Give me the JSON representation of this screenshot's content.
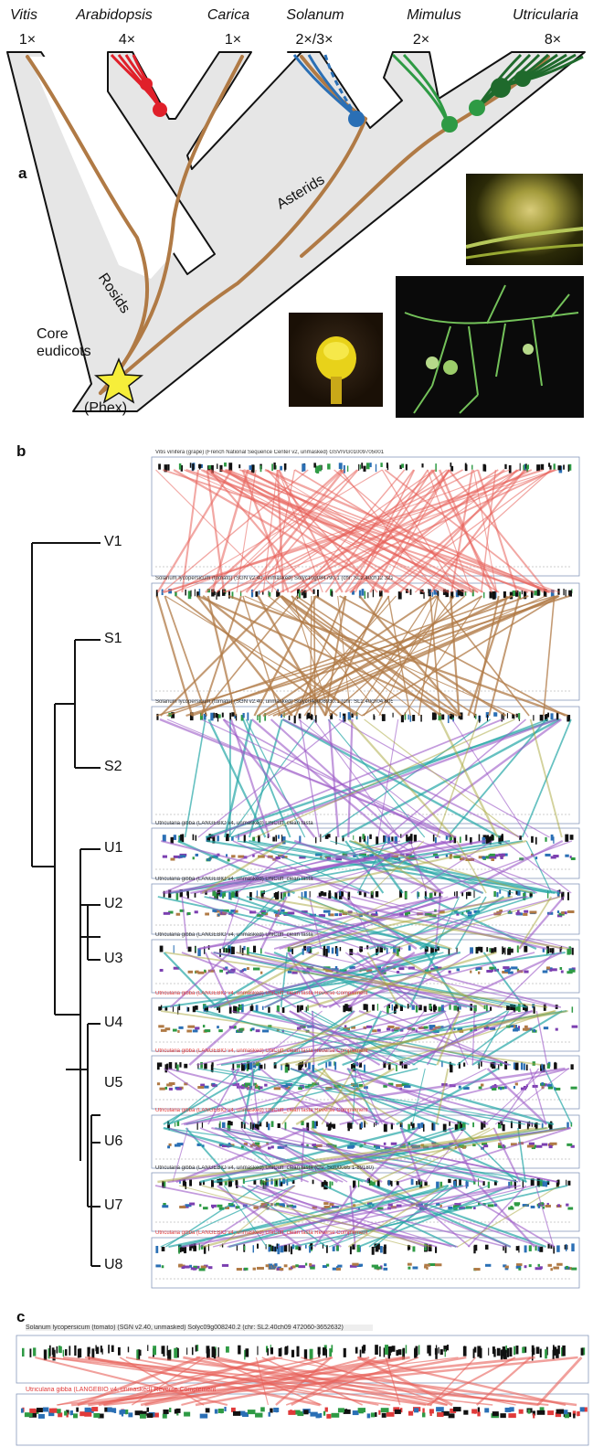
{
  "panel_a": {
    "letter": "a",
    "taxa": [
      {
        "name": "Vitis",
        "ploidy": "1×"
      },
      {
        "name": "Arabidopsis",
        "ploidy": "4×"
      },
      {
        "name": "Carica",
        "ploidy": "1×"
      },
      {
        "name": "Solanum",
        "ploidy": "2×/3×"
      },
      {
        "name": "Mimulus",
        "ploidy": "2×"
      },
      {
        "name": "Utricularia",
        "ploidy": "8×"
      }
    ],
    "clades": {
      "rosids": "Rosids",
      "asterids": "Asterids"
    },
    "core_line1": "Core",
    "core_line2": "eudicots",
    "phex": "(Phex)",
    "colors": {
      "brown": "#b07a45",
      "red": "#e0202a",
      "blue": "#2a6fb5",
      "green": "#2e9a44",
      "darkgreen": "#1f6a2c",
      "star": "#f6ee3a"
    }
  },
  "panel_b": {
    "letter": "b",
    "leaves": [
      "V1",
      "S1",
      "S2",
      "U1",
      "U2",
      "U3",
      "U4",
      "U5",
      "U6",
      "U7",
      "U8"
    ],
    "track_titles": [
      "Vitis vinifera (grape) (French National Sequence Center v2, unmasked) GSVIVG01009705001 (chr: 18 7646973-13650794)",
      "Solanum lycopersicum (tomato) (SGN v2.40, unmasked) Solyc10g084790.1 (chr: SL2.40ch12 32228650-63285158)",
      "Solanum lycopersicum (tomato) (SGN v2.40, unmasked) Solyc04g008930.1 (chr: SL2.40ch04 60568945-64064312)",
      "Utricularia gibba (LANGEBIO v4, unmasked) UhiCuff_clean fasta",
      "Utricularia gibba (LANGEBIO v4, unmasked) UhiCuff_clean fasta",
      "Utricularia gibba (LANGEBIO v4, unmasked) UhiCuff_clean fasta",
      "Utricularia gibba (LANGEBIO v4, unmasked) UhiCuff_clean fasta Reverse Complement",
      "Utricularia gibba (LANGEBIO v4, unmasked) UhiCuff_clean fasta Reverse Complement",
      "Utricularia gibba (LANGEBIO v4, unmasked) UhiCuff_clean fasta Reverse Complement",
      "Utricularia gibba (LANGEBIO v4, unmasked) UhiCuff_clean fasta (chr: Scf00085 1-89180)",
      "Utricularia gibba (LANGEBIO v4, unmasked) UhiCuff_clean fasta Reverse Complement"
    ]
  },
  "panel_c": {
    "letter": "c",
    "track_title_top": "Solanum lycopersicum (tomato) (SGN v2.40, unmasked) Solyc09g008240.2 (chr: SL2.40ch09 472060-3652632)",
    "track_title_bottom": "Utricularia gibba (LANGEBIO v4, unmasked) Reverse Complement"
  }
}
